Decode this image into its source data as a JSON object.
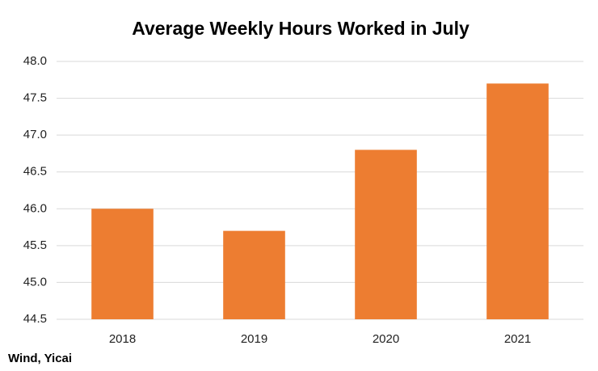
{
  "chart_data": {
    "type": "bar",
    "title": "Average Weekly Hours Worked in July",
    "categories": [
      "2018",
      "2019",
      "2020",
      "2021"
    ],
    "values": [
      46.0,
      45.7,
      46.8,
      47.7
    ],
    "color": "#ed7d31",
    "ylim": [
      44.5,
      48.0
    ],
    "yticks": [
      44.5,
      {
        "value": 45,
        "label": "45.0"
      },
      45.5,
      {
        "value": 46,
        "label": "46.0"
      },
      46.5,
      {
        "value": 47,
        "label": "47.0"
      },
      47.5,
      {
        "value": 48,
        "label": "48.0"
      }
    ],
    "grid": true,
    "source": "Wind, Yicai"
  }
}
